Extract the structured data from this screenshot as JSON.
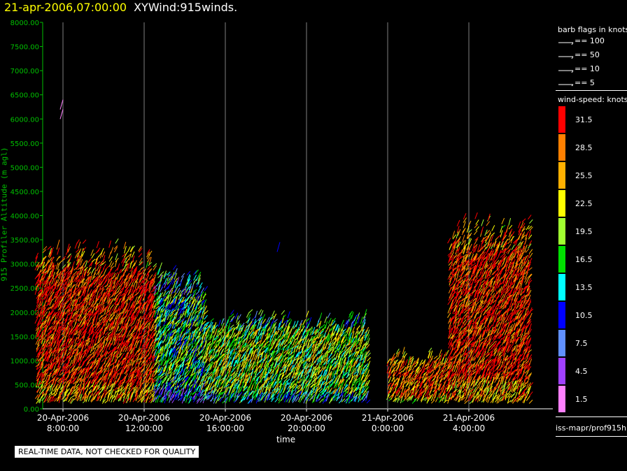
{
  "header": {
    "date_time": "21-apr-2006,07:00:00",
    "product": "XYWind:915winds."
  },
  "chart_data": {
    "type": "scatter",
    "subtype": "wind-barb time-height plot",
    "ylabel": "915 Profiler Altitude (m agl)",
    "xlabel": "time",
    "ylim": [
      0,
      8000
    ],
    "y_ticks": [
      "0.00",
      "500.00",
      "1000.00",
      "1500.00",
      "2000.00",
      "2500.00",
      "3000.00",
      "3500.00",
      "4000.00",
      "4500.00",
      "5000.00",
      "5500.00",
      "6000.00",
      "6500.00",
      "7000.00",
      "7500.00",
      "8000.00"
    ],
    "x_ticks": [
      {
        "date": "20-Apr-2006",
        "time": "8:00:00"
      },
      {
        "date": "20-Apr-2006",
        "time": "12:00:00"
      },
      {
        "date": "20-Apr-2006",
        "time": "16:00:00"
      },
      {
        "date": "20-Apr-2006",
        "time": "20:00:00"
      },
      {
        "date": "21-Apr-2006",
        "time": "0:00:00"
      },
      {
        "date": "21-Apr-2006",
        "time": "4:00:00"
      }
    ],
    "grid_vertical": true,
    "legend_position": "right",
    "barb_title": "barb flags in knots",
    "barb_flags": [
      "== 100",
      "== 50",
      "== 10",
      "== 5"
    ],
    "speed_title": "wind-speed: knots",
    "speed_bins": [
      {
        "label": "31.5",
        "color": "#ff0000"
      },
      {
        "label": "28.5",
        "color": "#ff8000"
      },
      {
        "label": "25.5",
        "color": "#ffb000"
      },
      {
        "label": "22.5",
        "color": "#ffff00"
      },
      {
        "label": "19.5",
        "color": "#a0ff30"
      },
      {
        "label": "16.5",
        "color": "#00e000"
      },
      {
        "label": "13.5",
        "color": "#00ffff"
      },
      {
        "label": "10.5",
        "color": "#0000ff"
      },
      {
        "label": "7.5",
        "color": "#6090ff"
      },
      {
        "label": "4.5",
        "color": "#a040ff"
      },
      {
        "label": "1.5",
        "color": "#ff80ff"
      }
    ],
    "data_regions": [
      {
        "t_start": "20-Apr-2006 6:40",
        "t_end": "20-Apr-2006 12:30",
        "alt_top": 3300,
        "dominant_speed": 31.5
      },
      {
        "t_start": "20-Apr-2006 12:30",
        "t_end": "20-Apr-2006 15:00",
        "alt_top": 2800,
        "dominant_speed": 16.5
      },
      {
        "t_start": "20-Apr-2006 15:00",
        "t_end": "20-Apr-2006 23:00",
        "alt_top": 1900,
        "dominant_speed": 19.5
      },
      {
        "t_start": "21-Apr-2006 0:00",
        "t_end": "21-Apr-2006 3:00",
        "alt_top": 1100,
        "dominant_speed": 28.5
      },
      {
        "t_start": "21-Apr-2006 3:00",
        "t_end": "21-Apr-2006 7:00",
        "alt_top": 3800,
        "dominant_speed": 31.5
      }
    ]
  },
  "source_label": "iss-mapr/prof915h",
  "notice": "REAL-TIME DATA, NOT CHECKED FOR QUALITY",
  "colors": {
    "axis": "#00c000",
    "grid": "#808080",
    "title": "#ffff00"
  }
}
